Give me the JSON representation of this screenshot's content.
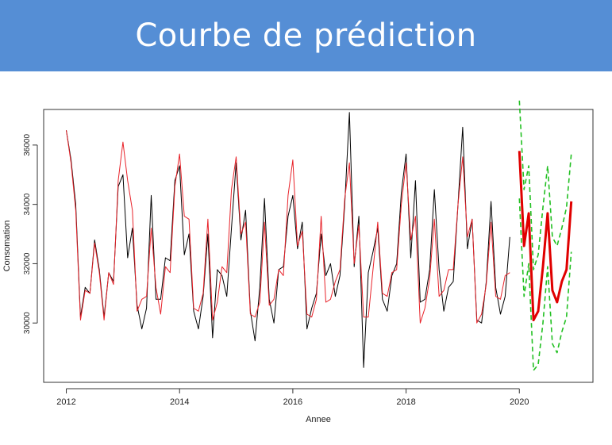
{
  "page": {
    "title": "Courbe de prédiction"
  },
  "chart_data": {
    "type": "line",
    "title": "",
    "xlabel": "Annee",
    "ylabel": "Consomation",
    "xlim": [
      2011.6,
      2021.3
    ],
    "ylim": [
      28000,
      37200
    ],
    "x_ticks": [
      2012,
      2014,
      2016,
      2018,
      2020
    ],
    "y_ticks": [
      30000,
      32000,
      34000,
      36000
    ],
    "grid": false,
    "colors": {
      "observed": "#000000",
      "fitted": "#e8232a",
      "forecast": "#e00000",
      "interval": "#22c022"
    },
    "series": [
      {
        "key": "observed",
        "x_start": 2012.0,
        "x_step": 0.08333,
        "values": [
          36500,
          35500,
          34000,
          30200,
          31200,
          31000,
          32800,
          31800,
          30200,
          31700,
          31400,
          34600,
          35000,
          32200,
          33200,
          30600,
          29800,
          30500,
          34300,
          30800,
          30800,
          32200,
          32100,
          34800,
          35300,
          32300,
          33000,
          30400,
          29800,
          30900,
          33000,
          29500,
          31800,
          31600,
          30900,
          33200,
          35400,
          32800,
          33800,
          30400,
          29400,
          31200,
          34200,
          30800,
          30000,
          31800,
          31900,
          33600,
          34300,
          32500,
          33400,
          29800,
          30500,
          31000,
          33000,
          31600,
          32000,
          30900,
          31600,
          34000,
          37100,
          31900,
          33600,
          28500,
          31700,
          32400,
          33200,
          30800,
          30400,
          31600,
          32000,
          34400,
          35700,
          32200,
          34800,
          30700,
          30800,
          31800,
          34500,
          31800,
          30400,
          31200,
          31400,
          34000,
          36600,
          32500,
          33500,
          30100,
          30000,
          31400,
          34100,
          31200,
          30300,
          30900,
          32900
        ]
      },
      {
        "key": "fitted",
        "x_start": 2012.0,
        "x_step": 0.08333,
        "values": [
          36500,
          35400,
          33800,
          30100,
          31100,
          31000,
          32700,
          31700,
          30100,
          31700,
          31300,
          34800,
          36100,
          34800,
          33800,
          30400,
          30800,
          30900,
          33200,
          31200,
          30300,
          31900,
          31700,
          34600,
          35700,
          33600,
          33500,
          30500,
          30400,
          31000,
          33500,
          30100,
          30700,
          31900,
          31700,
          34500,
          35600,
          33000,
          33400,
          30300,
          30200,
          30700,
          33400,
          30600,
          30800,
          31800,
          31600,
          34300,
          35500,
          32600,
          33100,
          30300,
          30200,
          30800,
          33600,
          30700,
          30800,
          31400,
          31800,
          34200,
          35400,
          32000,
          33300,
          30200,
          30200,
          31800,
          33400,
          31000,
          30900,
          31700,
          31800,
          34000,
          35400,
          32800,
          33600,
          30000,
          30500,
          31500,
          33500,
          30900,
          31100,
          31800,
          31800,
          34000,
          35600,
          32900,
          33500,
          30000,
          30300,
          31300,
          33400,
          30900,
          30800,
          31600,
          31700
        ]
      },
      {
        "key": "forecast",
        "x_start": 2020.0,
        "x_step": 0.08333,
        "values": [
          35800,
          32600,
          33700,
          30100,
          30400,
          31900,
          33700,
          31100,
          30700,
          31400,
          31800,
          34100
        ]
      },
      {
        "key": "upper",
        "x_start": 2020.0,
        "x_step": 0.08333,
        "values": [
          37500,
          34500,
          35300,
          31800,
          32300,
          33900,
          35300,
          32900,
          32600,
          33200,
          33900,
          35700
        ]
      },
      {
        "key": "lower",
        "x_start": 2020.0,
        "x_step": 0.08333,
        "values": [
          34200,
          30900,
          32000,
          28400,
          28600,
          30000,
          31900,
          29300,
          29000,
          29700,
          30200,
          32400
        ]
      }
    ]
  }
}
